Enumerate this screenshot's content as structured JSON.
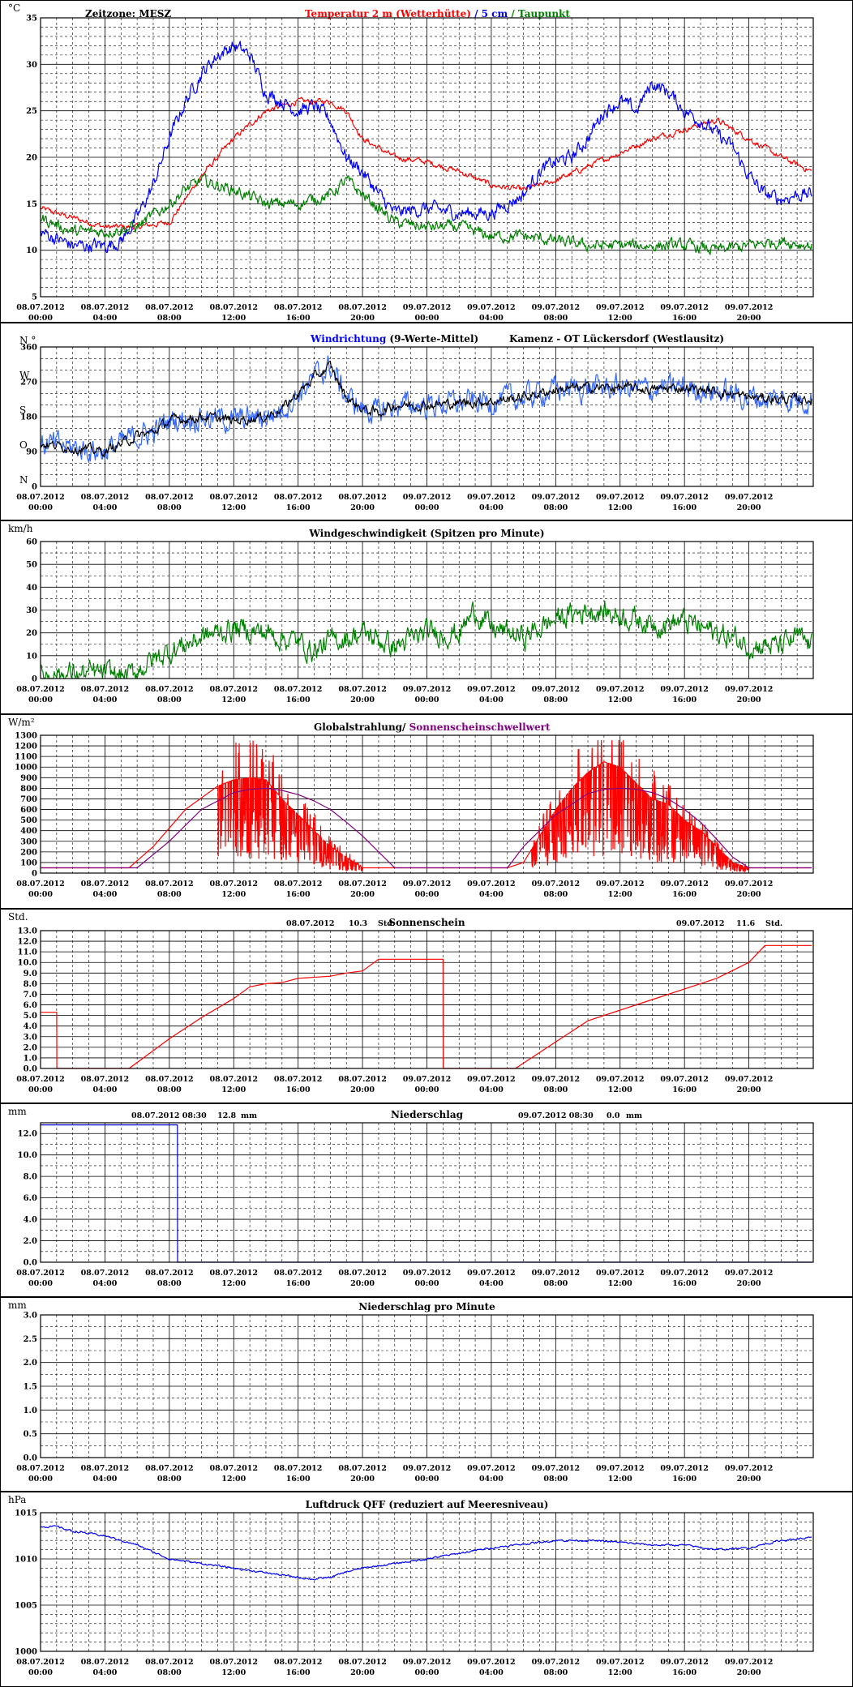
{
  "chart_data": [
    {
      "type": "line",
      "unit": "°C",
      "ylim": [
        5,
        35
      ],
      "yticks": [
        5,
        10,
        15,
        20,
        25,
        30,
        35
      ],
      "header": {
        "zeitzone": "Zeitzone: MESZ",
        "title_parts": [
          {
            "text": "Temperatur 2 m (Wetterhütte)",
            "color": "#ff0000"
          },
          {
            "text": " / ",
            "color": "#0000ff"
          },
          {
            "text": "5 cm",
            "color": "#0000ff"
          },
          {
            "text": " / ",
            "color": "#008000"
          },
          {
            "text": "Taupunkt",
            "color": "#008000"
          }
        ]
      },
      "series": [
        {
          "name": "Temperatur 2 m (Wetterhütte)",
          "color": "#ff0000",
          "noise": 0.25,
          "x": [
            0,
            2,
            4,
            6,
            8,
            10,
            12,
            14,
            16,
            18,
            19,
            20,
            22,
            24,
            26,
            28,
            30,
            32,
            34,
            36,
            38,
            40,
            42,
            44,
            46,
            47.9
          ],
          "y": [
            14.5,
            13.5,
            12.5,
            12.5,
            13,
            18,
            22,
            25,
            26,
            26,
            25,
            22,
            20,
            19.5,
            18.5,
            17,
            16.5,
            17.5,
            19,
            20.5,
            22,
            23,
            24,
            22,
            20,
            18.5
          ]
        },
        {
          "name": "5 cm",
          "color": "#0000ff",
          "noise": 0.6,
          "x": [
            0,
            2,
            4,
            5,
            6,
            7,
            8,
            9,
            10,
            11,
            12,
            13,
            14,
            15,
            16,
            17,
            18,
            19,
            20,
            21,
            22,
            24,
            26,
            28,
            30,
            31,
            32,
            33,
            34,
            35,
            36,
            37,
            38,
            39,
            40,
            41,
            42,
            43,
            44,
            45,
            46,
            47,
            47.9
          ],
          "y": [
            12,
            10.5,
            10.5,
            11,
            13.5,
            17,
            22,
            26,
            29,
            31,
            32,
            31,
            27,
            26,
            25,
            25.5,
            24,
            20,
            18.5,
            16,
            14,
            14.5,
            14,
            14,
            16,
            18.5,
            19.5,
            20,
            22,
            25,
            26,
            25,
            28,
            27,
            25,
            24,
            22.5,
            21,
            18,
            16,
            15.5,
            16,
            16
          ]
        },
        {
          "name": "Taupunkt",
          "color": "#008000",
          "noise": 0.5,
          "x": [
            0,
            2,
            4,
            6,
            8,
            9,
            10,
            12,
            14,
            16,
            18,
            19,
            20,
            21,
            22,
            24,
            26,
            28,
            30,
            32,
            34,
            36,
            38,
            40,
            42,
            44,
            46,
            47.9
          ],
          "y": [
            13.5,
            12,
            12,
            12.5,
            15,
            16.5,
            17.5,
            16.5,
            15,
            15,
            16,
            17.5,
            16,
            14.5,
            13,
            12.5,
            12.5,
            11.5,
            11.5,
            11,
            10.5,
            10.5,
            10.5,
            10.5,
            10,
            10.5,
            11,
            10.5
          ]
        }
      ]
    },
    {
      "type": "line",
      "ylim": [
        0,
        360
      ],
      "yticks": [
        0,
        90,
        180,
        270,
        360
      ],
      "left_labels": [
        "N",
        "O",
        "S",
        "W",
        "N °"
      ],
      "header": {
        "title_parts": [
          {
            "text": "Windrichtung",
            "color": "#0000ff"
          },
          {
            "text": " (9-Werte-Mittel)",
            "color": "#000000"
          }
        ],
        "location": "Kamenz - OT Lückersdorf (Westlausitz)"
      },
      "series": [
        {
          "name": "Windrichtung",
          "color": "#3366ff",
          "noise": 25,
          "x": [
            0,
            2,
            4,
            5,
            6,
            7,
            8,
            10,
            12,
            14,
            15,
            16,
            17,
            18,
            19,
            20,
            21,
            22,
            24,
            26,
            28,
            30,
            32,
            34,
            36,
            38,
            40,
            42,
            44,
            46,
            47.9
          ],
          "y": [
            110,
            100,
            90,
            110,
            130,
            140,
            170,
            180,
            170,
            180,
            200,
            240,
            280,
            310,
            230,
            200,
            190,
            210,
            210,
            215,
            220,
            230,
            250,
            255,
            255,
            250,
            255,
            245,
            230,
            225,
            225
          ]
        },
        {
          "name": "9-Werte-Mittel",
          "color": "#000000",
          "noise": 10,
          "x": [
            0,
            2,
            4,
            5,
            6,
            7,
            8,
            10,
            12,
            14,
            15,
            16,
            17,
            18,
            19,
            20,
            21,
            22,
            24,
            26,
            28,
            30,
            32,
            34,
            36,
            38,
            40,
            42,
            44,
            46,
            47.9
          ],
          "y": [
            110,
            100,
            90,
            110,
            130,
            140,
            170,
            180,
            170,
            180,
            200,
            240,
            280,
            310,
            230,
            200,
            190,
            210,
            210,
            215,
            220,
            230,
            250,
            255,
            255,
            250,
            255,
            245,
            230,
            225,
            225
          ]
        }
      ]
    },
    {
      "type": "line",
      "unit": "km/h",
      "ylim": [
        0,
        60
      ],
      "yticks": [
        0,
        10,
        20,
        30,
        40,
        50,
        60
      ],
      "header": {
        "title": "Windgeschwindigkeit (Spitzen pro Minute)"
      },
      "series": [
        {
          "name": "Windgeschwindigkeit",
          "color": "#008000",
          "noise": 4,
          "x": [
            0,
            2,
            4,
            5.5,
            6.5,
            8,
            10,
            12,
            14,
            16,
            17,
            18,
            20,
            22,
            24,
            26,
            27,
            28,
            30,
            32,
            34,
            36,
            38,
            40,
            42,
            44,
            46,
            47,
            47.9
          ],
          "y": [
            2,
            2,
            2,
            1,
            6,
            12,
            18,
            22,
            20,
            16,
            12,
            16,
            20,
            14,
            20,
            20,
            30,
            22,
            18,
            26,
            30,
            28,
            24,
            25,
            20,
            15,
            14,
            18,
            14
          ]
        }
      ]
    },
    {
      "type": "line",
      "unit": "W/m²",
      "ylim": [
        0,
        1300
      ],
      "yticks": [
        0,
        100,
        200,
        300,
        400,
        500,
        600,
        700,
        800,
        900,
        1000,
        1100,
        1200,
        1300
      ],
      "header": {
        "title_parts": [
          {
            "text": "Globalstrahlung/ ",
            "color": "#000000"
          },
          {
            "text": "Sonnenscheinschwellwert",
            "color": "#800080"
          }
        ]
      },
      "series": [
        {
          "name": "Globalstrahlung",
          "color": "#ff0000",
          "noise": 0,
          "x": [
            0,
            5.5,
            7,
            9,
            11,
            12,
            13,
            14,
            15,
            16,
            17,
            18,
            19,
            20,
            21,
            22,
            23,
            24,
            25,
            26,
            27,
            28,
            29,
            30,
            31,
            32,
            33,
            34,
            35,
            36,
            37,
            38,
            39,
            40,
            41,
            42,
            43,
            44,
            45,
            46,
            47.9
          ],
          "y": [
            50,
            50,
            250,
            600,
            820,
            880,
            900,
            880,
            700,
            550,
            400,
            250,
            150,
            50,
            50,
            50,
            50,
            50,
            50,
            50,
            50,
            50,
            50,
            100,
            350,
            600,
            800,
            950,
            1050,
            1000,
            850,
            700,
            650,
            500,
            400,
            250,
            100,
            50,
            50,
            50,
            50
          ]
        },
        {
          "name": "Sonnenscheinschwellwert",
          "color": "#800080",
          "noise": 0,
          "x": [
            0,
            6,
            8,
            10,
            12,
            13,
            14,
            15,
            16,
            17,
            18,
            19,
            20,
            21,
            22,
            28,
            29,
            30,
            32,
            34,
            35,
            36,
            37,
            38,
            39,
            40,
            41,
            42,
            43,
            44,
            47.9
          ],
          "y": [
            50,
            50,
            300,
            600,
            760,
            790,
            800,
            780,
            740,
            680,
            600,
            480,
            350,
            200,
            50,
            50,
            50,
            250,
            550,
            750,
            790,
            800,
            790,
            760,
            700,
            600,
            480,
            320,
            150,
            50,
            50
          ]
        }
      ]
    },
    {
      "type": "line",
      "unit": "Std.",
      "ylim": [
        0,
        13
      ],
      "yticks": [
        0,
        1,
        2,
        3,
        4,
        5,
        6,
        7,
        8,
        9,
        10,
        11,
        12,
        13
      ],
      "header": {
        "title": "Sonnenschein",
        "date1": "08.07.2012",
        "val1": "10.3",
        "unit1": "Std.",
        "date2": "09.07.2012",
        "val2": "11.6",
        "unit2": "Std."
      },
      "series": [
        {
          "name": "Sonnenschein",
          "color": "#ff0000",
          "noise": 0,
          "x": [
            0,
            1,
            1,
            1.01,
            5.5,
            8,
            10,
            12,
            13,
            14,
            15,
            16,
            18,
            19,
            20,
            21,
            22,
            23,
            24,
            25,
            25,
            25.01,
            29.5,
            32,
            34,
            36,
            38,
            40,
            42,
            44,
            45,
            47.9
          ],
          "y": [
            5.3,
            5.3,
            5.3,
            0,
            0,
            2.8,
            4.8,
            6.6,
            7.7,
            8,
            8.1,
            8.5,
            8.7,
            9,
            9.2,
            10.3,
            10.3,
            10.3,
            10.3,
            10.3,
            10.3,
            0,
            0,
            2.5,
            4.5,
            5.5,
            6.5,
            7.5,
            8.5,
            10,
            11.6,
            11.6
          ]
        }
      ]
    },
    {
      "type": "line",
      "unit": "mm",
      "ylim": [
        0,
        13
      ],
      "yticks": [
        0,
        2,
        4,
        6,
        8,
        10,
        12
      ],
      "ytick_labels": [
        "0.0",
        "2.0",
        "4.0",
        "6.0",
        "8.0",
        "10.0",
        "12.0"
      ],
      "header": {
        "title": "Niederschlag",
        "date1": "08.07.2012 08:30",
        "val1": "12.8",
        "unit1": "mm",
        "date2": "09.07.2012 08:30",
        "val2": "0.0",
        "unit2": "mm"
      },
      "series": [
        {
          "name": "Niederschlag",
          "color": "#0000cc",
          "noise": 0,
          "x": [
            0,
            8.5,
            8.5,
            8.51,
            47.9
          ],
          "y": [
            12.8,
            12.8,
            12.8,
            0,
            0
          ]
        }
      ]
    },
    {
      "type": "line",
      "unit": "mm",
      "ylim": [
        0,
        3
      ],
      "yticks": [
        0,
        0.5,
        1,
        1.5,
        2,
        2.5,
        3
      ],
      "ytick_labels": [
        "0.0",
        "0.5",
        "1.0",
        "1.5",
        "2.0",
        "2.5",
        "3.0"
      ],
      "header": {
        "title": "Niederschlag pro Minute"
      },
      "series": []
    },
    {
      "type": "line",
      "unit": "hPa",
      "ylim": [
        1000,
        1015
      ],
      "yticks": [
        1000,
        1005,
        1010,
        1015
      ],
      "header": {
        "title": "Luftdruck QFF (reduziert auf Meeresniveau)"
      },
      "series": [
        {
          "name": "Luftdruck QFF",
          "color": "#0000ff",
          "noise": 0.08,
          "x": [
            0,
            1,
            2,
            4,
            6,
            8,
            10,
            12,
            14,
            16,
            17,
            18,
            19,
            20,
            22,
            24,
            26,
            28,
            30,
            32,
            34,
            36,
            38,
            40,
            42,
            44,
            46,
            47.9
          ],
          "y": [
            1013.5,
            1013.5,
            1013,
            1012.5,
            1011.5,
            1010,
            1009.5,
            1009,
            1008.5,
            1008,
            1007.8,
            1008,
            1008.6,
            1009,
            1009.5,
            1010,
            1010.6,
            1011.2,
            1011.6,
            1012,
            1012,
            1011.8,
            1011.5,
            1011.5,
            1011,
            1011.2,
            1012,
            1012.3
          ]
        }
      ]
    }
  ],
  "x_axis": {
    "labels": [
      [
        "08.07.2012",
        "00:00"
      ],
      [
        "08.07.2012",
        "04:00"
      ],
      [
        "08.07.2012",
        "08:00"
      ],
      [
        "08.07.2012",
        "12:00"
      ],
      [
        "08.07.2012",
        "16:00"
      ],
      [
        "08.07.2012",
        "20:00"
      ],
      [
        "09.07.2012",
        "00:00"
      ],
      [
        "09.07.2012",
        "04:00"
      ],
      [
        "09.07.2012",
        "08:00"
      ],
      [
        "09.07.2012",
        "12:00"
      ],
      [
        "09.07.2012",
        "16:00"
      ],
      [
        "09.07.2012",
        "20:00"
      ]
    ],
    "hours_start": 0,
    "hours_end": 48,
    "label_step_hours": 4
  }
}
